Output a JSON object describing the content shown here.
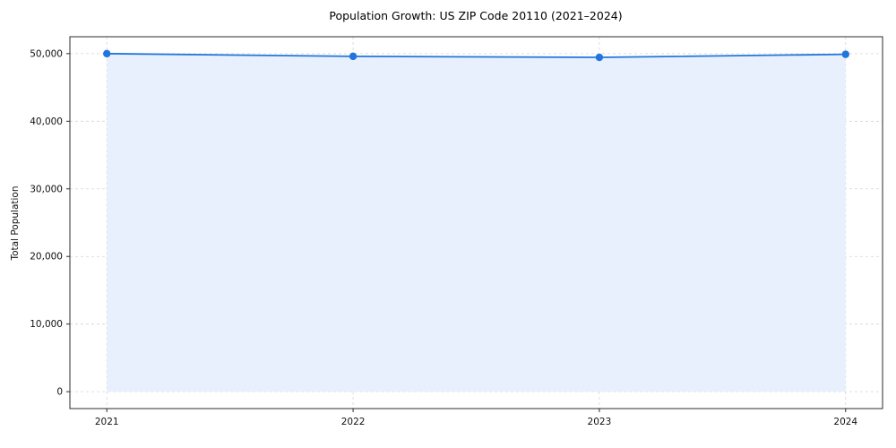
{
  "chart_data": {
    "type": "line",
    "title": "Population Growth: US ZIP Code 20110 (2021–2024)",
    "xlabel": "",
    "ylabel": "Total Population",
    "x": [
      2021,
      2022,
      2023,
      2024
    ],
    "values": [
      50000,
      49600,
      49450,
      49900
    ],
    "series_name": "Total Population",
    "xticks": [
      2021,
      2022,
      2023,
      2024
    ],
    "yticks": [
      0,
      10000,
      20000,
      30000,
      40000,
      50000
    ],
    "xlim": [
      2020.85,
      2024.15
    ],
    "ylim": [
      -2500,
      52500
    ],
    "grid": true,
    "grid_style": "dashed",
    "legend": "none",
    "area_fill": true,
    "colors": {
      "line": "#2176dd",
      "marker": "#2176dd",
      "area": "#e7f0fc",
      "grid": "#d4d4d4",
      "frame": "#2b2b2b",
      "background": "#ffffff"
    }
  }
}
